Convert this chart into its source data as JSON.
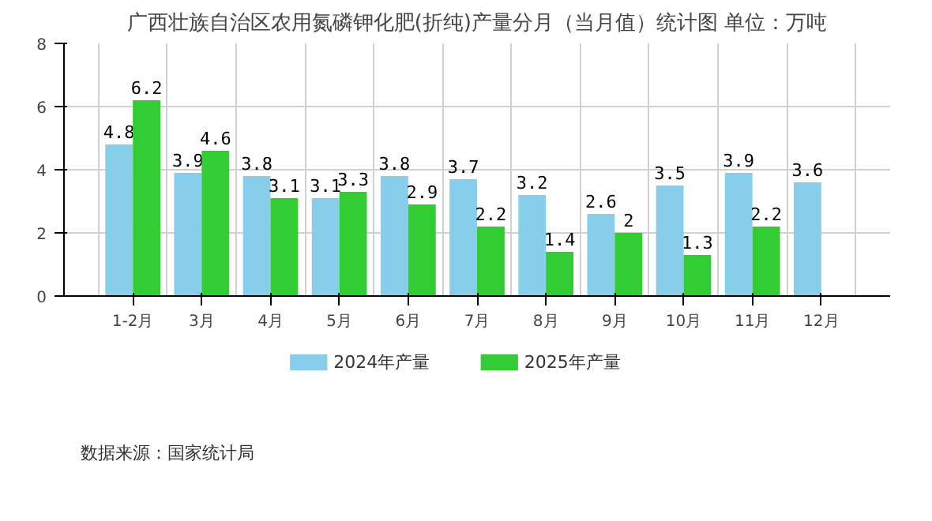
{
  "chart_data": {
    "type": "bar",
    "title": "广西壮族自治区农用氮磷钾化肥(折纯)产量分月（当月值）统计图 单位：万吨",
    "categories": [
      "1-2月",
      "3月",
      "4月",
      "5月",
      "6月",
      "7月",
      "8月",
      "9月",
      "10月",
      "11月",
      "12月"
    ],
    "series": [
      {
        "name": "2024年产量",
        "color": "#87ceeb",
        "values": [
          4.8,
          3.9,
          3.8,
          3.1,
          3.8,
          3.7,
          3.2,
          2.6,
          3.5,
          3.9,
          3.6
        ]
      },
      {
        "name": "2025年产量",
        "color": "#32cd32",
        "values": [
          6.2,
          4.6,
          3.1,
          3.3,
          2.9,
          2.2,
          1.4,
          2,
          1.3,
          2.2,
          null
        ]
      }
    ],
    "ylim": [
      0,
      8
    ],
    "yticks": [
      0,
      2,
      4,
      6,
      8
    ],
    "grid": true,
    "legend": "bottom",
    "data_labels": true,
    "annotations": [
      "数据来源：国家统计局"
    ]
  }
}
